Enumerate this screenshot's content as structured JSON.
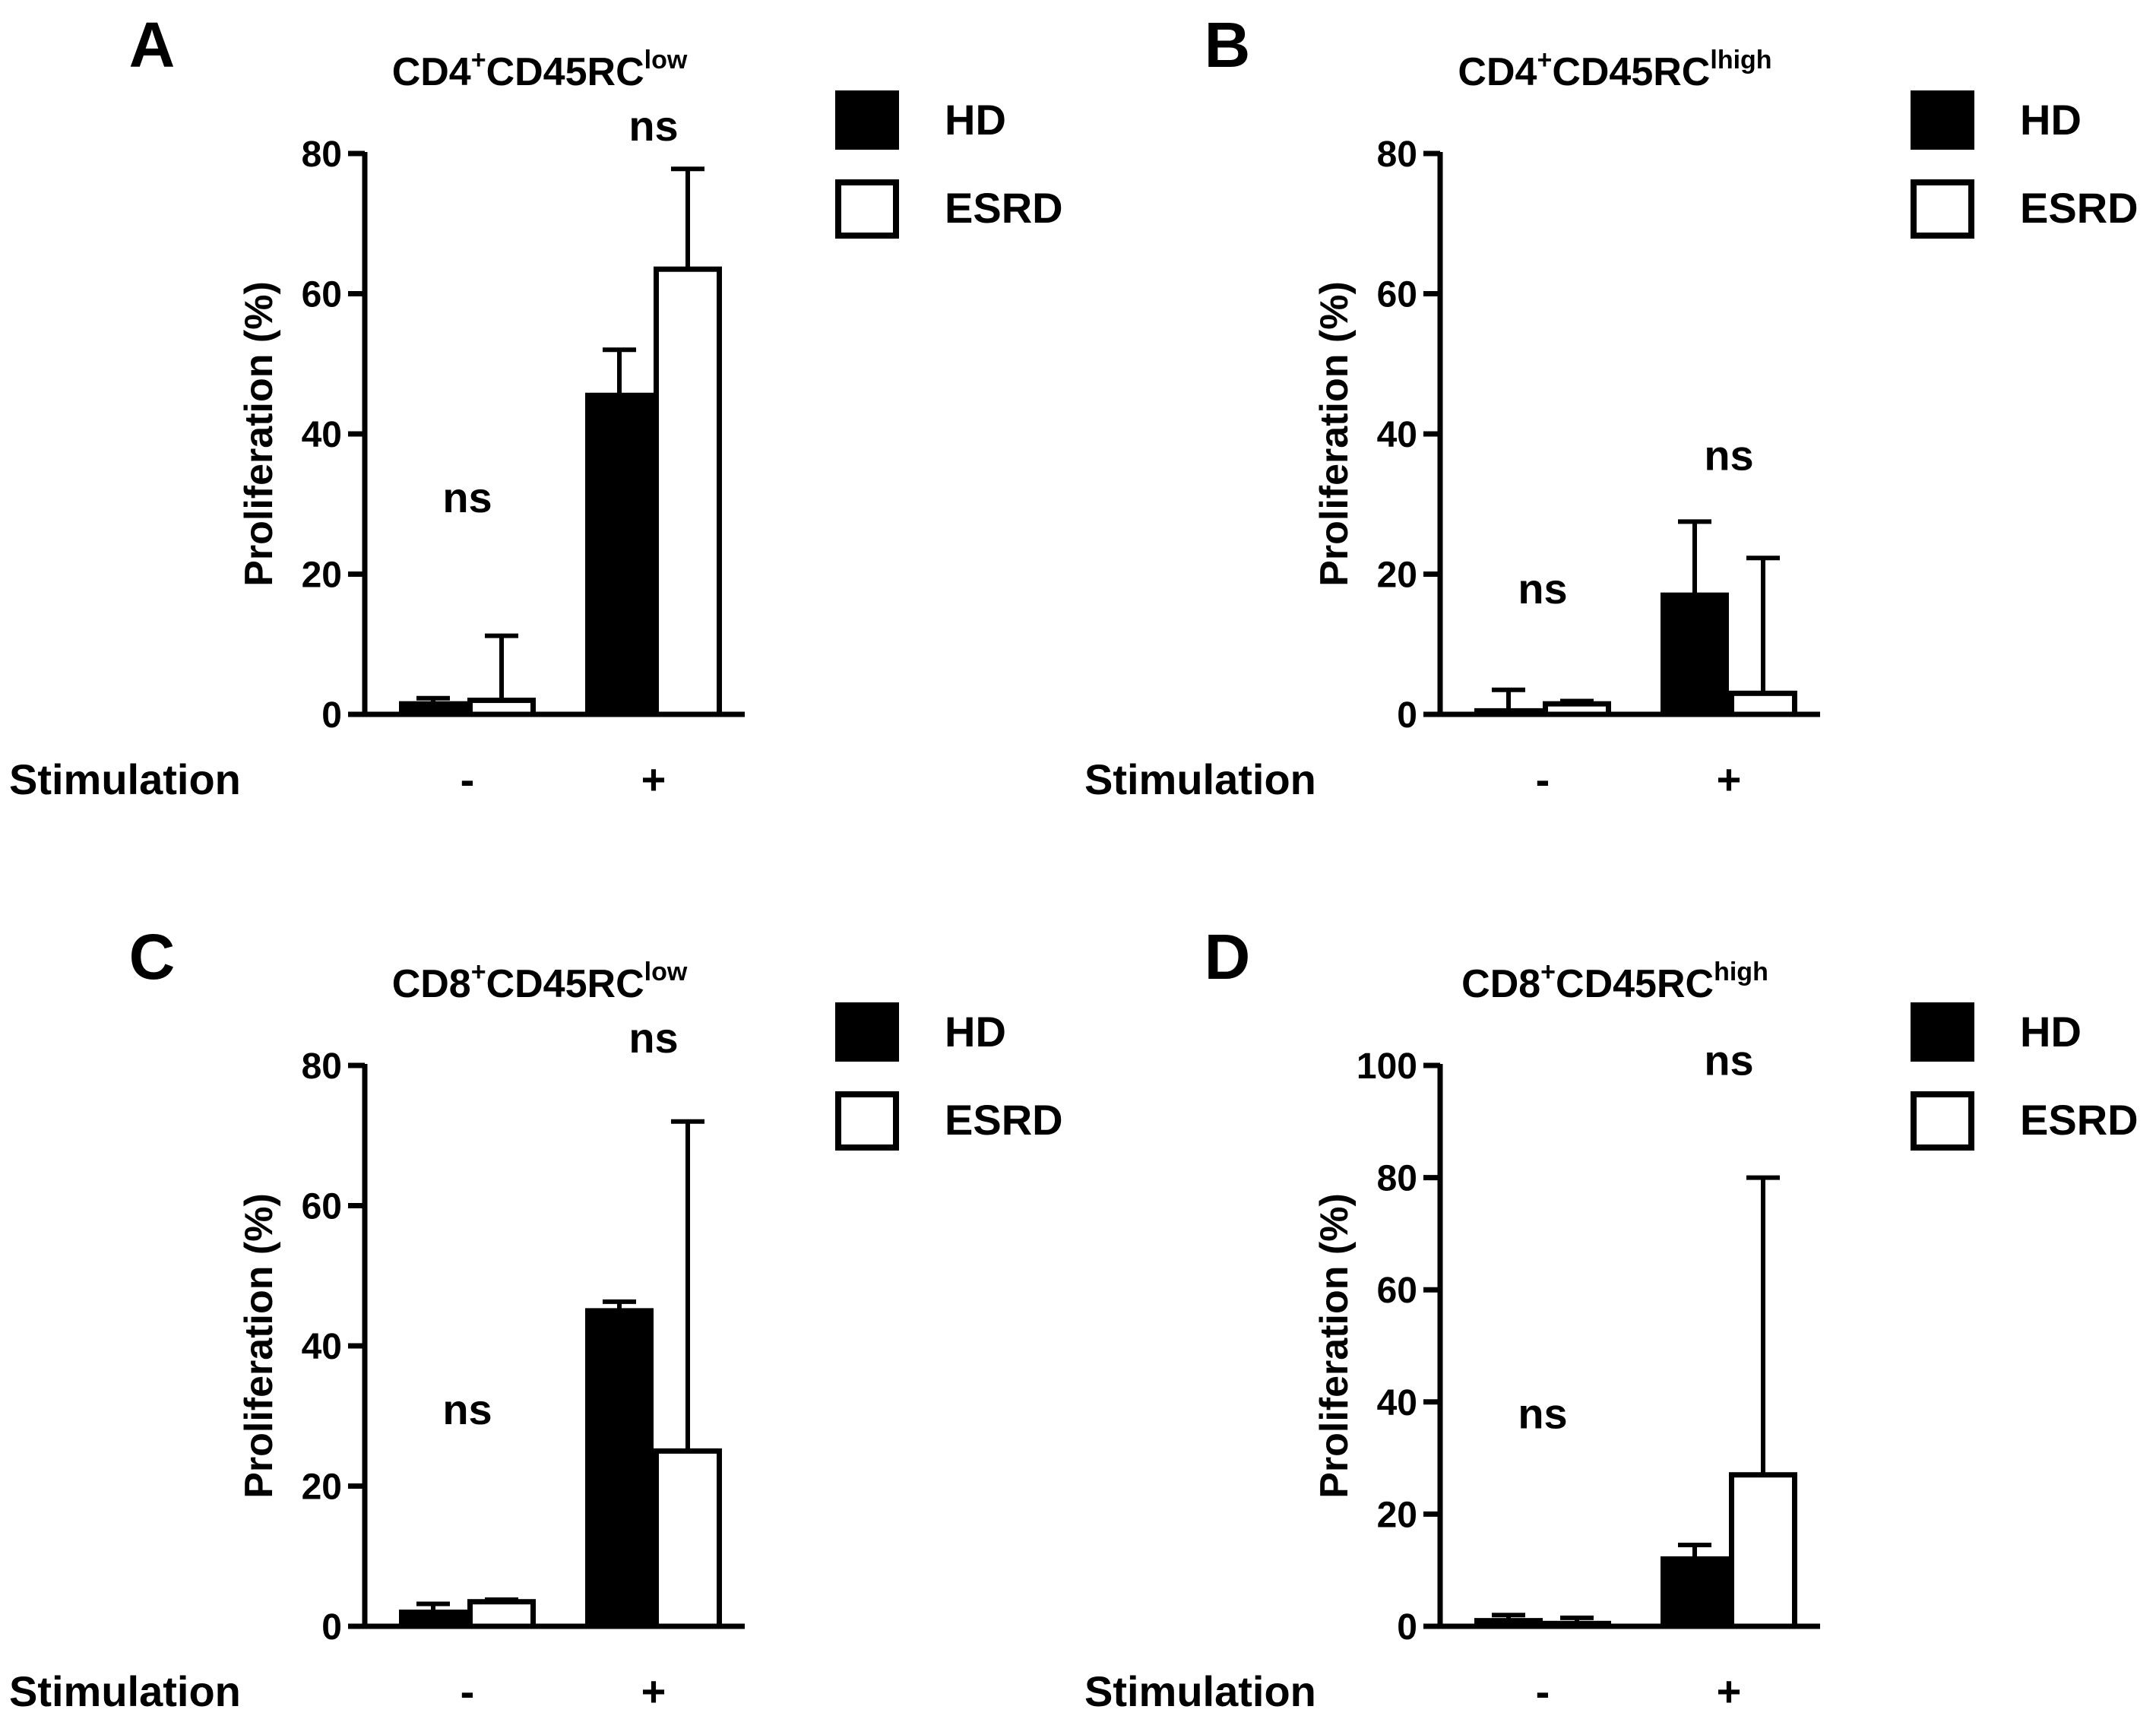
{
  "figure": {
    "stimulation_label": "Stimulation",
    "legend": {
      "hd_label": "HD",
      "esrd_label": "ESRD",
      "hd_color": "#000000",
      "esrd_color": "#ffffff"
    }
  },
  "chart_data": [
    {
      "panel": "A",
      "type": "bar",
      "title": "CD4",
      "title_sup1": "+",
      "title_main": "CD45RC",
      "title_sup2": "low",
      "ylabel": "Proliferation (%)",
      "xlabel": "Stimulation",
      "categories": [
        "-",
        "+"
      ],
      "ylim": [
        0,
        80
      ],
      "yticks": [
        "0",
        "20",
        "40",
        "60",
        "80"
      ],
      "series": [
        {
          "name": "HD",
          "values": [
            1.5,
            45.5
          ],
          "errors": [
            0.8,
            6.5
          ]
        },
        {
          "name": "ESRD",
          "values": [
            2.0,
            63.5
          ],
          "errors": [
            9.2,
            14.3
          ]
        }
      ],
      "annotations": [
        {
          "category": "-",
          "text": "ns",
          "y": 31
        },
        {
          "category": "+",
          "text": "ns",
          "y": 84
        }
      ],
      "legend": [
        "HD",
        "ESRD"
      ]
    },
    {
      "panel": "B",
      "type": "bar",
      "title": "CD4",
      "title_sup1": "+",
      "title_main": "CD45RC",
      "title_sup2": "lhigh",
      "ylabel": "Proliferation (%)",
      "xlabel": "Stimulation",
      "categories": [
        "-",
        "+"
      ],
      "ylim": [
        0,
        80
      ],
      "yticks": [
        "0",
        "20",
        "40",
        "60",
        "80"
      ],
      "series": [
        {
          "name": "HD",
          "values": [
            0.5,
            17.0
          ],
          "errors": [
            3.0,
            10.5
          ]
        },
        {
          "name": "ESRD",
          "values": [
            1.5,
            3.0
          ],
          "errors": [
            0.4,
            19.3
          ]
        }
      ],
      "annotations": [
        {
          "category": "-",
          "text": "ns",
          "y": 18
        },
        {
          "category": "+",
          "text": "ns",
          "y": 37
        }
      ],
      "legend": [
        "HD",
        "ESRD"
      ]
    },
    {
      "panel": "C",
      "type": "bar",
      "title": "CD8",
      "title_sup1": "+",
      "title_main": "CD45RC",
      "title_sup2": "low",
      "ylabel": "Proliferation (%)",
      "xlabel": "Stimulation",
      "categories": [
        "-",
        "+"
      ],
      "ylim": [
        0,
        80
      ],
      "yticks": [
        "0",
        "20",
        "40",
        "60",
        "80"
      ],
      "series": [
        {
          "name": "HD",
          "values": [
            2.0,
            45.0
          ],
          "errors": [
            1.2,
            1.3
          ]
        },
        {
          "name": "ESRD",
          "values": [
            3.5,
            25.0
          ],
          "errors": [
            0.3,
            47.0
          ]
        }
      ],
      "annotations": [
        {
          "category": "-",
          "text": "ns",
          "y": 31
        },
        {
          "category": "+",
          "text": "ns",
          "y": 84
        }
      ],
      "legend": [
        "HD",
        "ESRD"
      ]
    },
    {
      "panel": "D",
      "type": "bar",
      "title": "CD8",
      "title_sup1": "+",
      "title_main": "CD45RC",
      "title_sup2": "high",
      "ylabel": "Proliferation (%)",
      "xlabel": "Stimulation",
      "categories": [
        "-",
        "+"
      ],
      "ylim": [
        0,
        100
      ],
      "yticks": [
        "0",
        "20",
        "40",
        "60",
        "80",
        "100"
      ],
      "series": [
        {
          "name": "HD",
          "values": [
            1.0,
            12.0
          ],
          "errors": [
            1.0,
            2.5
          ]
        },
        {
          "name": "ESRD",
          "values": [
            0.5,
            27.0
          ],
          "errors": [
            1.0,
            53.0
          ]
        }
      ],
      "annotations": [
        {
          "category": "-",
          "text": "ns",
          "y": 38
        },
        {
          "category": "+",
          "text": "ns",
          "y": 101
        }
      ],
      "legend": [
        "HD",
        "ESRD"
      ]
    }
  ]
}
